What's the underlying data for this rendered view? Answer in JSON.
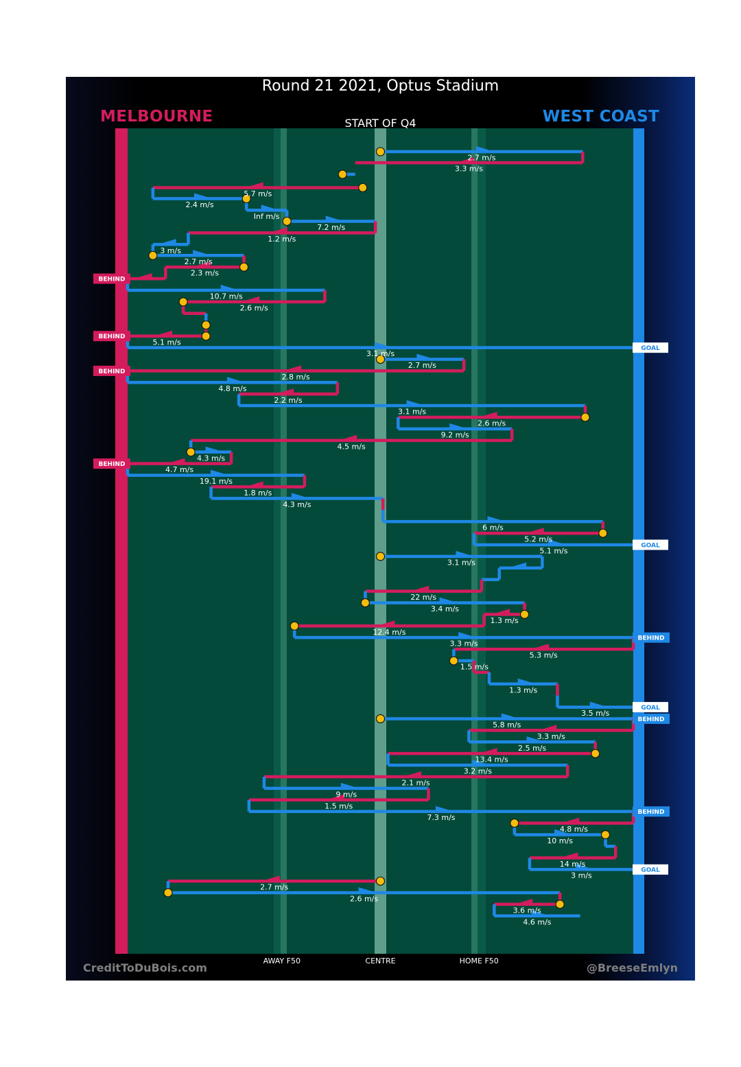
{
  "header": {
    "title": "Round 21 2021, Optus Stadium",
    "home_team": "MELBOURNE",
    "away_team": "WEST COAST",
    "start_label": "START OF Q4"
  },
  "footer": {
    "site": "CreditToDuBois.com",
    "handle": "@BreeseEmlyn"
  },
  "colors": {
    "melbourne": "#d41c5c",
    "west_coast": "#1e88e5",
    "ground": "#034a3a",
    "marker": "#f5bd0b"
  },
  "chart_data": {
    "type": "line",
    "title": "Round 21 2021, Optus Stadium",
    "subtitle": "START OF Q4",
    "xlabel": "",
    "ylabel": "",
    "xlim": [
      -100,
      100
    ],
    "ylim": [
      0,
      74
    ],
    "x_ticks": [
      {
        "value": -39,
        "label": "AWAY F50"
      },
      {
        "value": 0,
        "label": "CENTRE"
      },
      {
        "value": 39,
        "label": "HOME F50"
      }
    ],
    "note": "x = ball position along ground (Melbourne goal = -100, West Coast goal = 100); y = chain/event index down the page",
    "chains": [
      {
        "team": "WC",
        "y": 0.95,
        "start": 0,
        "end": 80,
        "label": "2.7 m/s",
        "marker": "start",
        "event": ""
      },
      {
        "team": "MEL",
        "y": 1.9,
        "start": 80,
        "end": -10,
        "label": "3.3 m/s",
        "marker": "",
        "event": ""
      },
      {
        "team": "WC",
        "y": 2.9,
        "start": -15,
        "end": -10,
        "label": "",
        "marker": "start",
        "event": ""
      },
      {
        "team": "MEL",
        "y": 4.05,
        "start": -7,
        "end": -90,
        "label": "5.7 m/s",
        "marker": "start",
        "event": ""
      },
      {
        "team": "WC",
        "y": 5.0,
        "start": -90,
        "end": -53,
        "label": "2.4 m/s",
        "marker": "end",
        "event": ""
      },
      {
        "team": "WC",
        "y": 6.0,
        "start": -53,
        "end": -37,
        "label": "Inf m/s",
        "marker": "",
        "event": ""
      },
      {
        "team": "WC",
        "y": 6.95,
        "start": -37,
        "end": -2,
        "label": "7.2 m/s",
        "marker": "start",
        "event": ""
      },
      {
        "team": "MEL",
        "y": 7.95,
        "start": -2,
        "end": -76,
        "label": "1.2 m/s",
        "marker": "",
        "event": ""
      },
      {
        "team": "WC",
        "y": 8.95,
        "start": -76,
        "end": -90,
        "label": "3 m/s",
        "marker": "",
        "event": ""
      },
      {
        "team": "WC",
        "y": 9.9,
        "start": -90,
        "end": -54,
        "label": "2.7 m/s",
        "marker": "start",
        "event": ""
      },
      {
        "team": "MEL",
        "y": 10.9,
        "start": -54,
        "end": -85,
        "label": "2.3 m/s",
        "marker": "start",
        "event": ""
      },
      {
        "team": "MEL",
        "y": 11.9,
        "start": -85,
        "end": -100,
        "label": "",
        "marker": "",
        "event": "BEHIND"
      },
      {
        "team": "WC",
        "y": 12.9,
        "start": -100,
        "end": -22,
        "label": "10.7 m/s",
        "marker": "",
        "event": ""
      },
      {
        "team": "MEL",
        "y": 13.9,
        "start": -22,
        "end": -78,
        "label": "2.6 m/s",
        "marker": "end",
        "event": ""
      },
      {
        "team": "MEL",
        "y": 14.9,
        "start": -78,
        "end": -69,
        "label": "",
        "marker": "",
        "event": ""
      },
      {
        "team": "WC",
        "y": 15.9,
        "start": -69,
        "end": -69,
        "label": "",
        "marker": "end",
        "event": ""
      },
      {
        "team": "MEL",
        "y": 16.85,
        "start": -69,
        "end": -100,
        "label": "5.1 m/s",
        "marker": "start",
        "event": "BEHIND"
      },
      {
        "team": "WC",
        "y": 17.85,
        "start": -100,
        "end": 100,
        "label": "3.1 m/s",
        "marker": "",
        "event": "GOAL"
      },
      {
        "team": "WC",
        "y": 18.85,
        "start": 0,
        "end": 33,
        "label": "2.7 m/s",
        "marker": "start",
        "event": ""
      },
      {
        "team": "MEL",
        "y": 19.85,
        "start": 33,
        "end": -100,
        "label": "2.8 m/s",
        "marker": "",
        "event": "BEHIND"
      },
      {
        "team": "WC",
        "y": 20.85,
        "start": -100,
        "end": -17,
        "label": "4.8 m/s",
        "marker": "",
        "event": ""
      },
      {
        "team": "MEL",
        "y": 21.85,
        "start": -17,
        "end": -56,
        "label": "2.2 m/s",
        "marker": "",
        "event": ""
      },
      {
        "team": "WC",
        "y": 22.85,
        "start": -56,
        "end": 81,
        "label": "3.1 m/s",
        "marker": "",
        "event": ""
      },
      {
        "team": "MEL",
        "y": 23.85,
        "start": 81,
        "end": 7,
        "label": "2.6 m/s",
        "marker": "start",
        "event": ""
      },
      {
        "team": "WC",
        "y": 24.85,
        "start": 7,
        "end": 52,
        "label": "9.2 m/s",
        "marker": "",
        "event": ""
      },
      {
        "team": "MEL",
        "y": 25.85,
        "start": 52,
        "end": -75,
        "label": "4.5 m/s",
        "marker": "",
        "event": ""
      },
      {
        "team": "WC",
        "y": 26.85,
        "start": -75,
        "end": -59,
        "label": "4.3 m/s",
        "marker": "start",
        "event": ""
      },
      {
        "team": "MEL",
        "y": 27.85,
        "start": -59,
        "end": -100,
        "label": "4.7 m/s",
        "marker": "",
        "event": "BEHIND"
      },
      {
        "team": "WC",
        "y": 28.85,
        "start": -100,
        "end": -30,
        "label": "19.1 m/s",
        "marker": "",
        "event": ""
      },
      {
        "team": "MEL",
        "y": 29.85,
        "start": -30,
        "end": -67,
        "label": "1.8 m/s",
        "marker": "",
        "event": ""
      },
      {
        "team": "WC",
        "y": 30.85,
        "start": -67,
        "end": 1,
        "label": "4.3 m/s",
        "marker": "",
        "event": ""
      },
      {
        "team": "MEL",
        "y": 31.85,
        "start": 1,
        "end": 1,
        "label": "",
        "marker": "",
        "event": ""
      },
      {
        "team": "WC",
        "y": 32.85,
        "start": 1,
        "end": 88,
        "label": "6 m/s",
        "marker": "",
        "event": ""
      },
      {
        "team": "MEL",
        "y": 33.85,
        "start": 88,
        "end": 37,
        "label": "5.2 m/s",
        "marker": "start",
        "event": ""
      },
      {
        "team": "WC",
        "y": 34.85,
        "start": 37,
        "end": 100,
        "label": "5.1 m/s",
        "marker": "",
        "event": "GOAL"
      },
      {
        "team": "WC",
        "y": 35.85,
        "start": 0,
        "end": 64,
        "label": "3.1 m/s",
        "marker": "start",
        "event": ""
      },
      {
        "team": "WC",
        "y": 36.85,
        "start": 64,
        "end": 47,
        "label": "",
        "marker": "",
        "event": ""
      },
      {
        "team": "WC",
        "y": 37.85,
        "start": 47,
        "end": 40,
        "label": "",
        "marker": "",
        "event": ""
      },
      {
        "team": "MEL",
        "y": 38.85,
        "start": 40,
        "end": -6,
        "label": "22 m/s",
        "marker": "",
        "event": ""
      },
      {
        "team": "WC",
        "y": 39.85,
        "start": -6,
        "end": 57,
        "label": "3.4 m/s",
        "marker": "start",
        "event": ""
      },
      {
        "team": "MEL",
        "y": 40.85,
        "start": 57,
        "end": 41,
        "label": "1.3 m/s",
        "marker": "start",
        "event": ""
      },
      {
        "team": "MEL",
        "y": 41.85,
        "start": 41,
        "end": -34,
        "label": "12.4 m/s",
        "marker": "end",
        "event": ""
      },
      {
        "team": "WC",
        "y": 42.85,
        "start": -34,
        "end": 100,
        "label": "3.3 m/s",
        "marker": "",
        "event": "BEHIND"
      },
      {
        "team": "MEL",
        "y": 43.85,
        "start": 100,
        "end": 29,
        "label": "5.3 m/s",
        "marker": "",
        "event": ""
      },
      {
        "team": "WC",
        "y": 44.85,
        "start": 29,
        "end": 37,
        "label": "1.5 m/s",
        "marker": "start",
        "event": ""
      },
      {
        "team": "MEL",
        "y": 45.85,
        "start": 37,
        "end": 43,
        "label": "",
        "marker": "",
        "event": ""
      },
      {
        "team": "WC",
        "y": 46.85,
        "start": 43,
        "end": 70,
        "label": "1.3 m/s",
        "marker": "",
        "event": ""
      },
      {
        "team": "MEL",
        "y": 47.85,
        "start": 70,
        "end": 70,
        "label": "",
        "marker": "",
        "event": ""
      },
      {
        "team": "WC",
        "y": 48.85,
        "start": 70,
        "end": 100,
        "label": "3.5 m/s",
        "marker": "",
        "event": "GOAL"
      },
      {
        "team": "WC",
        "y": 49.85,
        "start": 0,
        "end": 100,
        "label": "5.8 m/s",
        "marker": "start",
        "event": "BEHIND"
      },
      {
        "team": "MEL",
        "y": 50.85,
        "start": 100,
        "end": 35,
        "label": "3.3 m/s",
        "marker": "",
        "event": ""
      },
      {
        "team": "WC",
        "y": 51.85,
        "start": 35,
        "end": 85,
        "label": "2.5 m/s",
        "marker": "",
        "event": ""
      },
      {
        "team": "MEL",
        "y": 52.85,
        "start": 85,
        "end": 3,
        "label": "13.4 m/s",
        "marker": "start",
        "event": ""
      },
      {
        "team": "WC",
        "y": 53.85,
        "start": 3,
        "end": 74,
        "label": "3.2 m/s",
        "marker": "",
        "event": ""
      },
      {
        "team": "MEL",
        "y": 54.85,
        "start": 74,
        "end": -46,
        "label": "2.1 m/s",
        "marker": "",
        "event": ""
      },
      {
        "team": "WC",
        "y": 55.85,
        "start": -46,
        "end": 19,
        "label": "9 m/s",
        "marker": "",
        "event": ""
      },
      {
        "team": "MEL",
        "y": 56.85,
        "start": 19,
        "end": -52,
        "label": "1.5 m/s",
        "marker": "",
        "event": ""
      },
      {
        "team": "WC",
        "y": 57.85,
        "start": -52,
        "end": 100,
        "label": "7.3 m/s",
        "marker": "",
        "event": "BEHIND"
      },
      {
        "team": "MEL",
        "y": 58.85,
        "start": 100,
        "end": 53,
        "label": "4.8 m/s",
        "marker": "end",
        "event": ""
      },
      {
        "team": "WC",
        "y": 59.85,
        "start": 53,
        "end": 89,
        "label": "10 m/s",
        "marker": "end",
        "event": ""
      },
      {
        "team": "WC",
        "y": 60.85,
        "start": 89,
        "end": 93,
        "label": "",
        "marker": "",
        "event": ""
      },
      {
        "team": "MEL",
        "y": 61.85,
        "start": 93,
        "end": 59,
        "label": "14 m/s",
        "marker": "",
        "event": ""
      },
      {
        "team": "WC",
        "y": 62.85,
        "start": 59,
        "end": 100,
        "label": "3 m/s",
        "marker": "",
        "event": "GOAL"
      },
      {
        "team": "MEL",
        "y": 63.85,
        "start": 0,
        "end": -84,
        "label": "2.7 m/s",
        "marker": "start",
        "event": ""
      },
      {
        "team": "WC",
        "y": 64.85,
        "start": -84,
        "end": 71,
        "label": "2.6 m/s",
        "marker": "start",
        "event": ""
      },
      {
        "team": "MEL",
        "y": 65.85,
        "start": 71,
        "end": 45,
        "label": "3.6 m/s",
        "marker": "start",
        "event": ""
      },
      {
        "team": "WC",
        "y": 66.85,
        "start": 45,
        "end": 79,
        "label": "4.6 m/s",
        "marker": "",
        "event": ""
      }
    ]
  }
}
